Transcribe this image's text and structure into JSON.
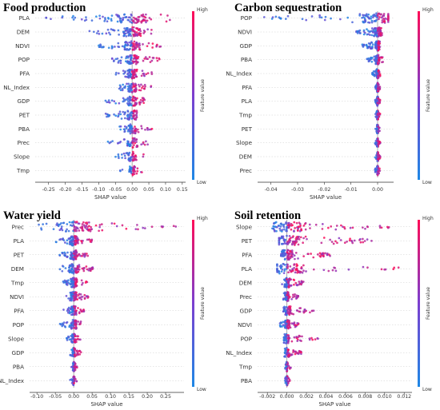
{
  "figure": {
    "colorbar_high": "High",
    "colorbar_low": "Low",
    "colorbar_label": "Feature value",
    "colors": {
      "low": "#1e88e5",
      "high": "#ff0d57"
    }
  },
  "chart_data": [
    {
      "type": "scatter",
      "title": "Food production",
      "xlabel": "SHAP value",
      "features": [
        "PLA",
        "DEM",
        "NDVI",
        "POP",
        "PFA",
        "NL_Index",
        "GDP",
        "PET",
        "PBA",
        "Prec",
        "Slope",
        "Tmp"
      ],
      "xlim": [
        -0.29,
        0.16
      ],
      "xticks": [
        "-0.25",
        "-0.20",
        "-0.15",
        "-0.10",
        "-0.05",
        "0.00",
        "0.05",
        "0.10",
        "0.15"
      ],
      "xtick_values": [
        -0.25,
        -0.2,
        -0.15,
        -0.1,
        -0.05,
        0,
        0.05,
        0.1,
        0.15
      ],
      "ranges": [
        [
          -0.26,
          0.12
        ],
        [
          -0.13,
          0.08
        ],
        [
          -0.1,
          0.09
        ],
        [
          -0.06,
          0.09
        ],
        [
          -0.05,
          0.06
        ],
        [
          -0.04,
          0.06
        ],
        [
          -0.08,
          0.04
        ],
        [
          -0.09,
          0.03
        ],
        [
          -0.04,
          0.06
        ],
        [
          -0.08,
          0.05
        ],
        [
          -0.06,
          0.04
        ],
        [
          -0.04,
          0.03
        ]
      ]
    },
    {
      "type": "scatter",
      "title": "Carbon sequestration",
      "xlabel": "SHAP value",
      "features": [
        "POP",
        "NDVI",
        "GDP",
        "PBA",
        "NL_Index",
        "PFA",
        "PLA",
        "Tmp",
        "PET",
        "Slope",
        "DEM",
        "Prec"
      ],
      "xlim": [
        -0.045,
        0.006
      ],
      "xticks": [
        "-0.04",
        "-0.03",
        "-0.02",
        "-0.01",
        "0.00"
      ],
      "xtick_values": [
        -0.04,
        -0.03,
        -0.02,
        -0.01,
        0
      ],
      "ranges": [
        [
          -0.043,
          0.004
        ],
        [
          -0.008,
          0.002
        ],
        [
          -0.006,
          0.001
        ],
        [
          -0.004,
          0.002
        ],
        [
          -0.002,
          0.001
        ],
        [
          -0.001,
          0.001
        ],
        [
          -0.001,
          0.001
        ],
        [
          -0.001,
          0.001
        ],
        [
          -0.001,
          0.001
        ],
        [
          -0.001,
          0.001
        ],
        [
          -0.001,
          0.001
        ],
        [
          -0.001,
          0.001
        ]
      ]
    },
    {
      "type": "scatter",
      "title": "Water yield",
      "xlabel": "SHAP value",
      "features": [
        "Prec",
        "PLA",
        "PET",
        "DEM",
        "Tmp",
        "NDVI",
        "PFA",
        "POP",
        "Slope",
        "GDP",
        "PBA",
        "NL_Index"
      ],
      "xlim": [
        -0.12,
        0.3
      ],
      "xticks": [
        "-0.10",
        "-0.05",
        "0.00",
        "0.05",
        "0.10",
        "0.15",
        "0.20",
        "0.25"
      ],
      "xtick_values": [
        -0.1,
        -0.05,
        0,
        0.05,
        0.1,
        0.15,
        0.2,
        0.25
      ],
      "ranges": [
        [
          -0.1,
          0.28
        ],
        [
          -0.05,
          0.05
        ],
        [
          -0.04,
          0.04
        ],
        [
          -0.04,
          0.06
        ],
        [
          -0.03,
          0.04
        ],
        [
          -0.02,
          0.04
        ],
        [
          -0.03,
          0.03
        ],
        [
          -0.04,
          0.02
        ],
        [
          -0.02,
          0.02
        ],
        [
          -0.01,
          0.02
        ],
        [
          -0.01,
          0.01
        ],
        [
          -0.01,
          0.01
        ]
      ]
    },
    {
      "type": "scatter",
      "title": "Soil retention",
      "xlabel": "SHAP value",
      "features": [
        "Slope",
        "PET",
        "PFA",
        "PLA",
        "DEM",
        "Prec",
        "GDP",
        "NDVI",
        "POP",
        "NL_Index",
        "Tmp",
        "PBA"
      ],
      "xlim": [
        -0.003,
        0.0128
      ],
      "xticks": [
        "-0.002",
        "0.000",
        "0.002",
        "0.004",
        "0.006",
        "0.008",
        "0.010",
        "0.012"
      ],
      "xtick_values": [
        -0.002,
        0,
        0.002,
        0.004,
        0.006,
        0.008,
        0.01,
        0.012
      ],
      "ranges": [
        [
          -0.0015,
          0.0105
        ],
        [
          -0.0008,
          0.0095
        ],
        [
          -0.0006,
          0.0045
        ],
        [
          -0.001,
          0.0118
        ],
        [
          -0.0005,
          0.0018
        ],
        [
          -0.0004,
          0.0012
        ],
        [
          -0.0004,
          0.0028
        ],
        [
          -0.0008,
          0.0012
        ],
        [
          -0.0003,
          0.0032
        ],
        [
          -0.0003,
          0.0015
        ],
        [
          -0.0002,
          0.0004
        ],
        [
          -0.0002,
          0.0003
        ]
      ]
    }
  ]
}
